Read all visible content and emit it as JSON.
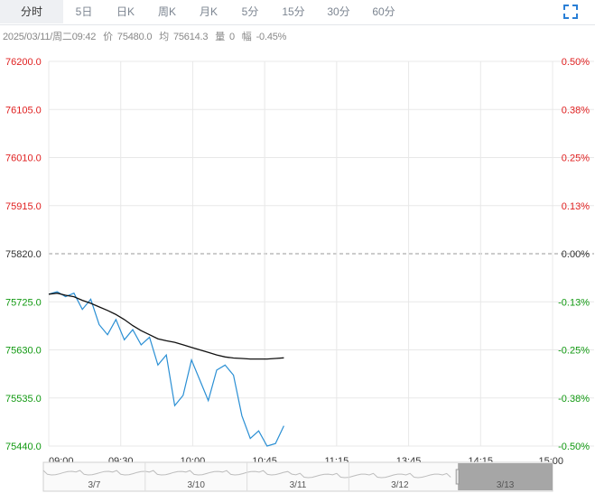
{
  "tabs": [
    {
      "label": "分时",
      "active": true
    },
    {
      "label": "5日",
      "active": false
    },
    {
      "label": "日K",
      "active": false
    },
    {
      "label": "周K",
      "active": false
    },
    {
      "label": "月K",
      "active": false
    },
    {
      "label": "5分",
      "active": false
    },
    {
      "label": "15分",
      "active": false
    },
    {
      "label": "30分",
      "active": false
    },
    {
      "label": "60分",
      "active": false
    }
  ],
  "fullscreen_icon": "expand-icon",
  "info": {
    "datetime": "2025/03/11/周二09:42",
    "price_label": "价",
    "price": "75480.0",
    "avg_label": "均",
    "avg": "75614.3",
    "volume_label": "量",
    "volume": "0",
    "change_label": "幅",
    "change": "-0.45%"
  },
  "colors": {
    "up": "#e02020",
    "down": "#119911",
    "neutral": "#333333",
    "price_line": "#2a8fd4",
    "avg_line": "#111111",
    "grid": "#e8e8e8",
    "nav_selected": "#a6a6a6"
  },
  "chart_data": {
    "type": "line",
    "prev_close": 75820.0,
    "ylim": [
      75440.0,
      76200.0
    ],
    "left_ticks": [
      "76200.0",
      "76105.0",
      "76010.0",
      "75915.0",
      "75820.0",
      "75725.0",
      "75630.0",
      "75535.0",
      "75440.0"
    ],
    "right_ticks": [
      "0.50%",
      "0.38%",
      "0.25%",
      "0.13%",
      "0.00%",
      "-0.13%",
      "-0.25%",
      "-0.38%",
      "-0.50%"
    ],
    "x_ticks": [
      "09:00",
      "09:30",
      "10:00",
      "10:45",
      "11:15",
      "13:45",
      "14:15",
      "15:00"
    ],
    "series": [
      {
        "values": [
          75740,
          75745,
          75735,
          75742,
          75710,
          75730,
          75680,
          75660,
          75690,
          75650,
          75670,
          75640,
          75655,
          75600,
          75620,
          75520,
          75540,
          75610,
          75570,
          75530,
          75590,
          75600,
          75580,
          75500,
          75455,
          75470,
          75440,
          75445,
          75480
        ]
      },
      {
        "values": [
          75740,
          75742,
          75738,
          75735,
          75728,
          75722,
          75715,
          75708,
          75700,
          75690,
          75678,
          75668,
          75660,
          75652,
          75648,
          75645,
          75640,
          75635,
          75630,
          75625,
          75620,
          75616,
          75614,
          75613,
          75612,
          75612,
          75612,
          75613,
          75614.3
        ]
      }
    ]
  },
  "navigator": {
    "dates": [
      "3/7",
      "3/10",
      "3/11",
      "3/12",
      "3/13"
    ],
    "selected": "3/13"
  }
}
